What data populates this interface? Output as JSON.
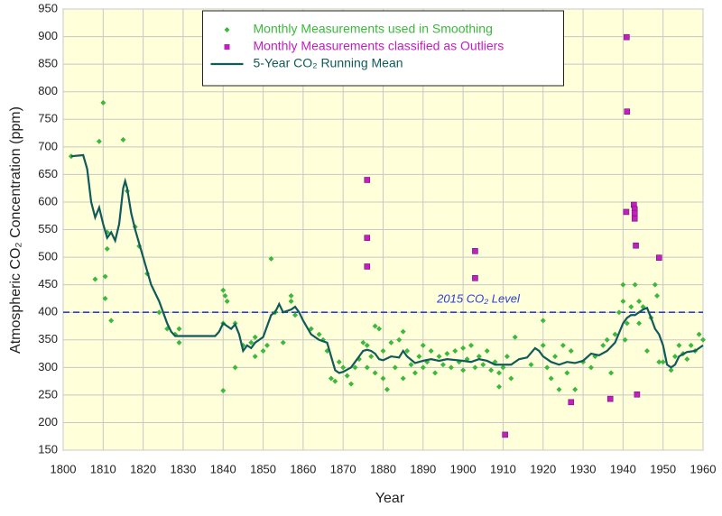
{
  "chart_data": {
    "type": "scatter",
    "x_label": "Year",
    "y_label": "Atmospheric CO₂ Concentration (ppm)",
    "xlim": [
      1800,
      1960
    ],
    "xticks": [
      1800,
      1810,
      1820,
      1830,
      1840,
      1850,
      1860,
      1870,
      1880,
      1890,
      1900,
      1910,
      1920,
      1930,
      1940,
      1950,
      1960
    ],
    "ylim": [
      150,
      950
    ],
    "yticks": [
      150,
      200,
      250,
      300,
      350,
      400,
      450,
      500,
      550,
      600,
      650,
      700,
      750,
      800,
      850,
      900,
      950
    ],
    "grid": true,
    "legend": "top-center",
    "reference_line": {
      "value": 400,
      "label": "2015 CO₂ Level",
      "color": "#2b3fd6"
    },
    "series": [
      {
        "name": "Monthly Measurements used in Smoothing",
        "type": "scatter",
        "color": "#3cb83c",
        "x": [
          1802,
          1808,
          1809,
          1810,
          1810.5,
          1810.5,
          1811,
          1811,
          1812,
          1815,
          1816,
          1818,
          1819,
          1821,
          1824,
          1826,
          1828,
          1829,
          1829,
          1840,
          1840,
          1840.5,
          1840,
          1841,
          1843,
          1843,
          1845,
          1847,
          1848,
          1848,
          1850,
          1851,
          1852,
          1853,
          1855,
          1857,
          1857,
          1858,
          1862,
          1864,
          1865,
          1866,
          1867,
          1868,
          1869,
          1870,
          1871,
          1872,
          1873,
          1874,
          1875,
          1876,
          1876,
          1877,
          1878,
          1878,
          1879,
          1880,
          1880,
          1881,
          1882,
          1883,
          1884,
          1885,
          1885,
          1886,
          1887,
          1888,
          1889,
          1890,
          1890,
          1891,
          1892,
          1893,
          1894,
          1895,
          1896,
          1897,
          1898,
          1899,
          1900,
          1900,
          1901,
          1902,
          1903,
          1904,
          1905,
          1906,
          1907,
          1908,
          1909,
          1909,
          1910,
          1911,
          1912,
          1913,
          1917,
          1920,
          1920,
          1921,
          1922,
          1923,
          1924,
          1925,
          1926,
          1927,
          1928,
          1930,
          1932,
          1933,
          1935,
          1936,
          1937,
          1938,
          1939,
          1940,
          1940,
          1940.5,
          1941,
          1942,
          1943,
          1944,
          1944,
          1945,
          1946,
          1947,
          1948,
          1948.5,
          1949,
          1950,
          1952,
          1953,
          1954,
          1955,
          1956,
          1957,
          1958,
          1959,
          1960
        ],
        "values": [
          683,
          460,
          710,
          780,
          465,
          425,
          545,
          515,
          385,
          713,
          620,
          555,
          520,
          470,
          400,
          370,
          360,
          345,
          370,
          258,
          440,
          430,
          380,
          420,
          380,
          300,
          340,
          345,
          355,
          320,
          330,
          340,
          497,
          400,
          345,
          430,
          420,
          395,
          370,
          360,
          350,
          330,
          280,
          275,
          310,
          300,
          285,
          270,
          300,
          315,
          345,
          340,
          300,
          320,
          375,
          290,
          370,
          330,
          280,
          260,
          345,
          300,
          350,
          365,
          280,
          330,
          305,
          290,
          320,
          340,
          300,
          310,
          330,
          290,
          320,
          305,
          325,
          300,
          330,
          310,
          335,
          295,
          315,
          340,
          300,
          320,
          305,
          330,
          295,
          310,
          265,
          290,
          300,
          320,
          280,
          355,
          305,
          385,
          340,
          300,
          280,
          320,
          260,
          340,
          290,
          330,
          260,
          310,
          300,
          320,
          340,
          350,
          290,
          360,
          400,
          450,
          420,
          350,
          380,
          410,
          450,
          420,
          380,
          410,
          330,
          390,
          450,
          430,
          310,
          310,
          295,
          320,
          340,
          325,
          315,
          340,
          330,
          360,
          350
        ]
      },
      {
        "name": "Monthly Measurements classified as Outliers",
        "type": "scatter",
        "marker": "square",
        "color": "#c21fbf",
        "x": [
          1876,
          1876,
          1876,
          1903,
          1903,
          1910.5,
          1927,
          1936.8,
          1940.9,
          1941,
          1940.8,
          1942.7,
          1942.9,
          1942.9,
          1942.9,
          1943.2,
          1943.5,
          1949
        ],
        "values": [
          640,
          535,
          483,
          511,
          462,
          178,
          237,
          243,
          899,
          764,
          582,
          595,
          587,
          580,
          570,
          521,
          251,
          499
        ]
      },
      {
        "name": "5-Year CO₂ Running Mean",
        "type": "line",
        "color": "#0f5a5a",
        "x": [
          1802,
          1805,
          1806,
          1807,
          1808,
          1809,
          1810,
          1811,
          1812,
          1813,
          1814,
          1815,
          1815.5,
          1816,
          1817,
          1818,
          1820,
          1822,
          1824,
          1826,
          1827,
          1828,
          1830,
          1835,
          1838,
          1839,
          1840,
          1841,
          1842,
          1843,
          1844,
          1845,
          1846,
          1847,
          1848,
          1849,
          1850,
          1851,
          1852,
          1853,
          1854,
          1855,
          1857,
          1858,
          1859,
          1860,
          1862,
          1864,
          1866,
          1867,
          1868,
          1869,
          1870,
          1872,
          1873,
          1874,
          1875,
          1876,
          1877,
          1878,
          1879,
          1880,
          1882,
          1884,
          1885,
          1886,
          1888,
          1890,
          1892,
          1894,
          1896,
          1900,
          1902,
          1904,
          1906,
          1908,
          1910,
          1912,
          1914,
          1916,
          1918,
          1919,
          1920,
          1922,
          1924,
          1926,
          1928,
          1930,
          1932,
          1934,
          1936,
          1938,
          1940,
          1941,
          1942,
          1943,
          1944,
          1945,
          1946,
          1947,
          1948,
          1949,
          1950,
          1951,
          1952,
          1953,
          1954,
          1956,
          1958,
          1960
        ],
        "values": [
          683,
          685,
          660,
          600,
          572,
          590,
          560,
          535,
          545,
          530,
          560,
          625,
          638,
          625,
          580,
          550,
          500,
          450,
          420,
          380,
          365,
          357,
          357,
          357,
          357,
          365,
          380,
          375,
          370,
          378,
          360,
          330,
          340,
          335,
          345,
          350,
          355,
          375,
          395,
          400,
          415,
          400,
          405,
          410,
          400,
          385,
          360,
          350,
          345,
          320,
          295,
          290,
          292,
          300,
          310,
          320,
          330,
          332,
          330,
          325,
          315,
          313,
          320,
          318,
          330,
          320,
          308,
          312,
          315,
          312,
          315,
          312,
          310,
          315,
          312,
          305,
          305,
          305,
          315,
          318,
          335,
          330,
          320,
          310,
          305,
          310,
          308,
          312,
          325,
          322,
          330,
          345,
          380,
          390,
          395,
          395,
          400,
          405,
          408,
          390,
          370,
          360,
          340,
          305,
          300,
          305,
          320,
          328,
          330,
          340
        ]
      }
    ]
  }
}
